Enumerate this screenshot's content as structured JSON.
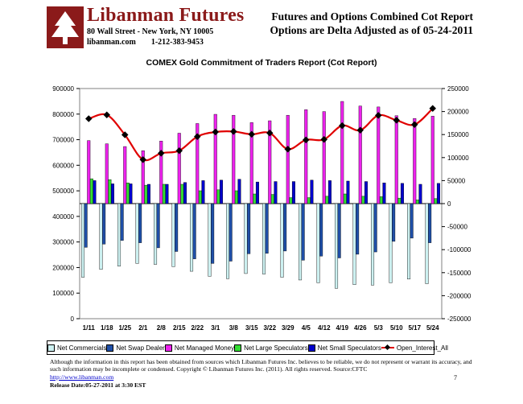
{
  "header": {
    "brand_name": "Libanman Futures",
    "address": "80 Wall Street - New York, NY 10005",
    "website": "libanman.com",
    "phone": "1-212-383-9453",
    "report_title_line1": "Futures and Options Combined Cot Report",
    "report_title_line2": "Options are Delta Adjusted as of 05-24-2011"
  },
  "colors": {
    "brand": "#8b1a1a",
    "net_commercials": "#ccf0f0",
    "net_swap_dealer": "#1f4fa8",
    "net_managed_money": "#ee22ee",
    "net_large_speculators": "#33dd33",
    "net_small_speculators": "#0000cc",
    "open_interest_line": "#e00000"
  },
  "chart_data": {
    "type": "bar",
    "title": "COMEX Gold Commitment of Traders Report (Cot Report)",
    "categories": [
      "1/11",
      "1/18",
      "1/25",
      "2/1",
      "2/8",
      "2/15",
      "2/22",
      "3/1",
      "3/8",
      "3/15",
      "3/22",
      "3/29",
      "4/5",
      "4/12",
      "4/19",
      "4/26",
      "5/3",
      "5/10",
      "5/17",
      "5/24"
    ],
    "left_axis": {
      "min": 0,
      "max": 900000,
      "step": 100000,
      "tick_labels": [
        "0",
        "100000",
        "200000",
        "300000",
        "400000",
        "500000",
        "600000",
        "700000",
        "800000",
        "900000"
      ]
    },
    "right_axis": {
      "min": -250000,
      "max": 250000,
      "step": 50000,
      "tick_labels": [
        "-250000",
        "-200000",
        "-150000",
        "-100000",
        "-50000",
        "0",
        "50000",
        "100000",
        "150000",
        "200000",
        "250000"
      ]
    },
    "series": [
      {
        "name": "Net Commercials",
        "axis": "right",
        "values": [
          -160000,
          -143000,
          -136000,
          -130000,
          -132000,
          -137000,
          -147000,
          -158000,
          -163000,
          -152000,
          -153000,
          -160000,
          -166000,
          -172000,
          -184000,
          -176000,
          -177000,
          -172000,
          -164000,
          -174000
        ]
      },
      {
        "name": "Net Swap Dealer",
        "axis": "right",
        "values": [
          -95000,
          -88000,
          -80000,
          -85000,
          -96000,
          -104000,
          -120000,
          -130000,
          -125000,
          -109000,
          -108000,
          -103000,
          -123000,
          -114000,
          -118000,
          -110000,
          -105000,
          -82000,
          -75000,
          -85000
        ]
      },
      {
        "name": "Net Managed Money",
        "axis": "right",
        "values": [
          137000,
          130000,
          124000,
          115000,
          136000,
          153000,
          174000,
          194000,
          192000,
          176000,
          180000,
          192000,
          204000,
          200000,
          222000,
          212000,
          210000,
          191000,
          185000,
          190000
        ]
      },
      {
        "name": "Net Large Speculators",
        "axis": "right",
        "values": [
          54000,
          52000,
          45000,
          40000,
          42000,
          42000,
          28000,
          30000,
          28000,
          21000,
          20000,
          13000,
          13000,
          16000,
          21000,
          16000,
          15000,
          12000,
          8000,
          11000
        ]
      },
      {
        "name": "Net Small Speculators",
        "axis": "right",
        "values": [
          50000,
          43000,
          43000,
          42000,
          42000,
          46000,
          50000,
          51000,
          53000,
          47000,
          48000,
          48000,
          51000,
          50000,
          49000,
          48000,
          45000,
          44000,
          42000,
          44000
        ]
      },
      {
        "name": "Open_Interest_All",
        "type": "line",
        "axis": "left",
        "values": [
          782000,
          797000,
          719000,
          622000,
          647000,
          657000,
          712000,
          730000,
          732000,
          721000,
          726000,
          663000,
          699000,
          701000,
          755000,
          737000,
          795000,
          776000,
          759000,
          822000
        ]
      }
    ]
  },
  "legend": {
    "items": [
      "Net Commercials",
      "Net Swap Dealer",
      "Net Managed Money",
      "Net Large Speculators",
      "Net Small Speculators",
      "Open_Interest_All"
    ]
  },
  "footer": {
    "disclaimer": "Although the information in this report has been obtained from sources which Libanman Futures Inc. believes to be reliable, we do not represent or warrant its accuracy, and such information may be incomplete or condensed. Copyright © Libanman Futures Inc. (2011). All rights reserved.  Source:CFTC",
    "link": "http://www.libanman.com",
    "release_date": "Release Date:05-27-2011 at 3:30 EST",
    "page_number": "7"
  }
}
